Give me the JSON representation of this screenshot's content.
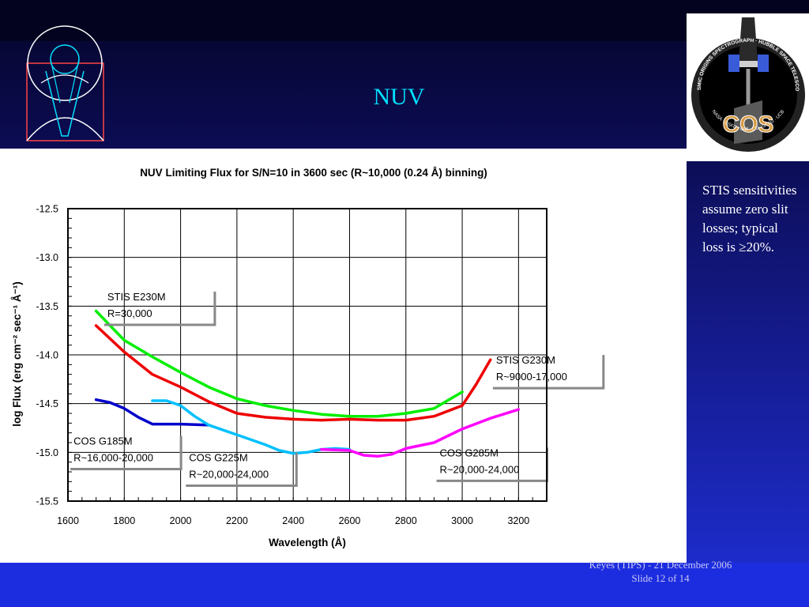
{
  "slide": {
    "title": "NUV",
    "side_note": "STIS sensitivities assume zero slit losses; typical loss is ≥20%.",
    "footer_line1": "Keyes (TIPS) - 21 December 2006",
    "footer_line2": "Slide 12 of  14"
  },
  "logos": {
    "cos_badge_ring_text": "COSMIC ORIGINS SPECTROGRAPH · HUBBLE SPACE TELESCOPE",
    "cos_badge_bottom_text": "NASA · GSFC · Ball · CU · STScI · UCB",
    "cos_badge_center_text": "COS"
  },
  "colors": {
    "stis_e230m": "#00ee00",
    "stis_g230m": "#ee0000",
    "cos_g185m": "#0000cc",
    "cos_g225m": "#00c0ff",
    "cos_g285m": "#ff00ff"
  },
  "chart_data": {
    "type": "line",
    "title": "NUV Limiting Flux for S/N=10 in 3600 sec (R~10,000 (0.24 Å) binning)",
    "xlabel": "Wavelength (Å)",
    "ylabel": "log Flux (erg cm⁻² sec⁻¹ Å⁻¹)",
    "xlim": [
      1600,
      3300
    ],
    "ylim": [
      -15.5,
      -12.5
    ],
    "xticks": [
      1600,
      1800,
      2000,
      2200,
      2400,
      2600,
      2800,
      3000,
      3200
    ],
    "xtick_labels": [
      "1600",
      "1800",
      "2000",
      "2200",
      "2400",
      "2600",
      "2800",
      "3000",
      "3200"
    ],
    "yticks": [
      -12.5,
      -13.0,
      -13.5,
      -14.0,
      -14.5,
      -15.0,
      -15.5
    ],
    "ytick_labels": [
      "-12.5",
      "-13.0",
      "-13.5",
      "-14.0",
      "-14.5",
      "-15.0",
      "-15.5"
    ],
    "grid": true,
    "series": [
      {
        "name": "STIS E230M",
        "label_lines": [
          "STIS E230M",
          "R=30,000"
        ],
        "color": "#00ee00",
        "x": [
          1700,
          1800,
          1900,
          2000,
          2100,
          2200,
          2300,
          2400,
          2500,
          2600,
          2700,
          2800,
          2900,
          3000
        ],
        "y": [
          -13.55,
          -13.85,
          -14.02,
          -14.18,
          -14.33,
          -14.45,
          -14.52,
          -14.57,
          -14.61,
          -14.63,
          -14.63,
          -14.6,
          -14.55,
          -14.38
        ]
      },
      {
        "name": "STIS G230M",
        "label_lines": [
          "STIS G230M",
          "R~9000-17,000"
        ],
        "color": "#ee0000",
        "x": [
          1700,
          1800,
          1900,
          2000,
          2100,
          2200,
          2300,
          2400,
          2500,
          2600,
          2700,
          2800,
          2900,
          3000,
          3050,
          3100
        ],
        "y": [
          -13.7,
          -13.97,
          -14.2,
          -14.33,
          -14.48,
          -14.6,
          -14.64,
          -14.66,
          -14.67,
          -14.66,
          -14.67,
          -14.67,
          -14.63,
          -14.52,
          -14.3,
          -14.05
        ]
      },
      {
        "name": "COS G185M",
        "label_lines": [
          "COS G185M",
          "R~16,000-20,000"
        ],
        "color": "#0000cc",
        "x": [
          1700,
          1750,
          1800,
          1850,
          1900,
          2000,
          2100
        ],
        "y": [
          -14.46,
          -14.49,
          -14.55,
          -14.64,
          -14.71,
          -14.71,
          -14.72
        ]
      },
      {
        "name": "COS G225M",
        "label_lines": [
          "COS G225M",
          "R~20,000-24,000"
        ],
        "color": "#00c0ff",
        "x": [
          1900,
          1950,
          2000,
          2050,
          2100,
          2200,
          2300,
          2350,
          2400,
          2450,
          2500,
          2550,
          2600
        ],
        "y": [
          -14.47,
          -14.47,
          -14.52,
          -14.63,
          -14.72,
          -14.82,
          -14.92,
          -14.98,
          -15.01,
          -15.0,
          -14.97,
          -14.96,
          -14.97
        ]
      },
      {
        "name": "COS G285M",
        "label_lines": [
          "COS G285M",
          "R~20,000-24,000"
        ],
        "color": "#ff00ff",
        "x": [
          2500,
          2600,
          2650,
          2700,
          2750,
          2800,
          2900,
          3000,
          3100,
          3200
        ],
        "y": [
          -14.97,
          -14.98,
          -15.03,
          -15.04,
          -15.02,
          -14.96,
          -14.9,
          -14.76,
          -14.65,
          -14.56
        ]
      }
    ]
  }
}
